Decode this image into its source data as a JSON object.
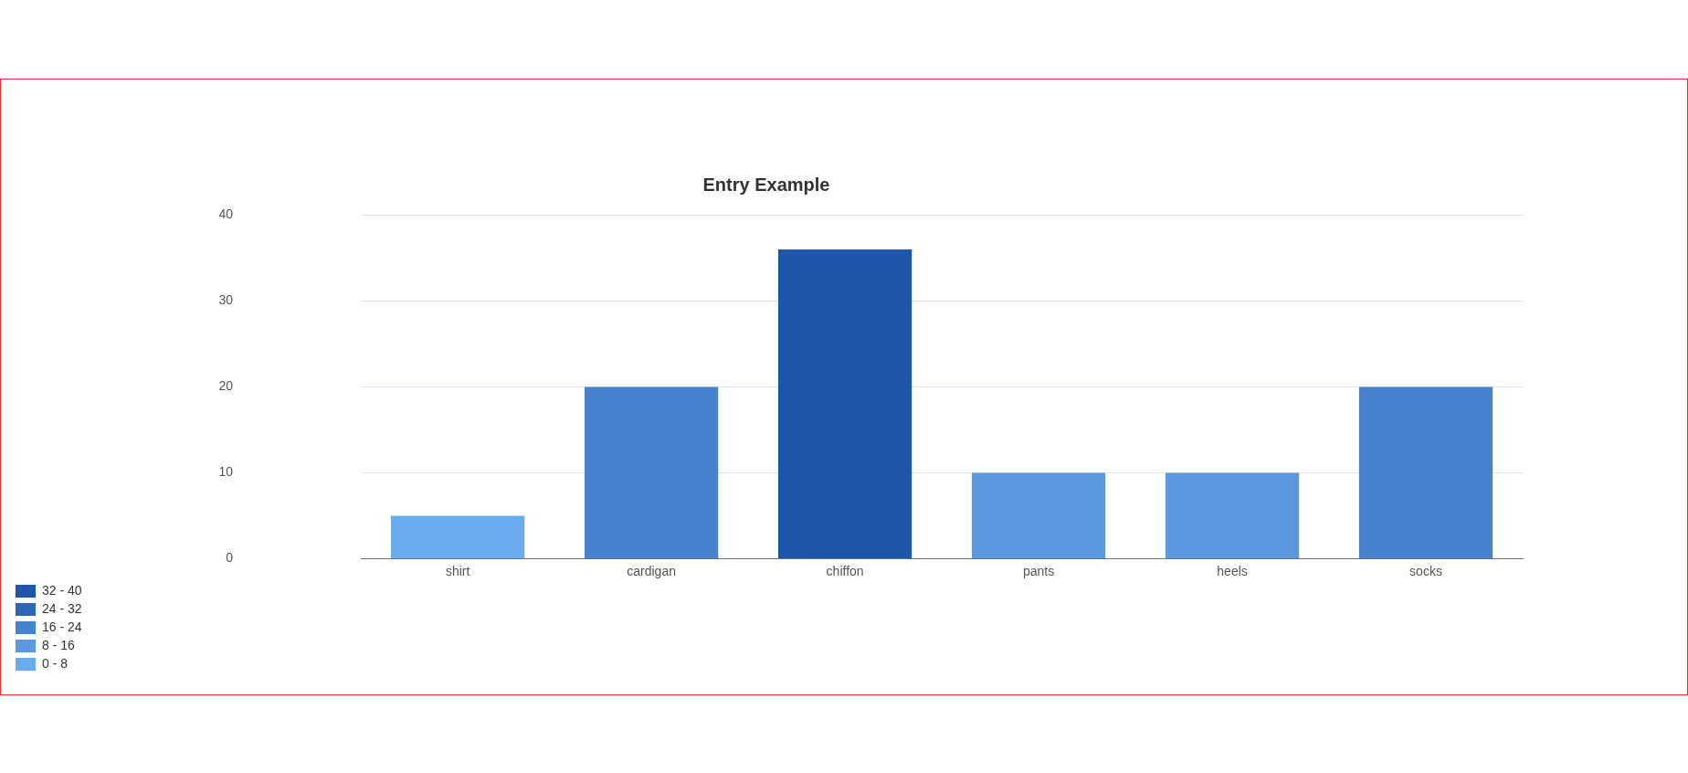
{
  "chart_data": {
    "type": "bar",
    "title": "Entry Example",
    "categories": [
      "shirt",
      "cardigan",
      "chiffon",
      "pants",
      "heels",
      "socks"
    ],
    "series": [
      {
        "name": "32 - 40",
        "color": "#1f56a8",
        "values": [
          null,
          null,
          36,
          null,
          null,
          null
        ]
      },
      {
        "name": "24 - 32",
        "color": "#2e67b6",
        "values": [
          null,
          null,
          null,
          null,
          null,
          null
        ]
      },
      {
        "name": "16 - 24",
        "color": "#4682cd",
        "values": [
          null,
          20,
          null,
          null,
          null,
          20
        ]
      },
      {
        "name": "8 - 16",
        "color": "#5b98dd",
        "values": [
          null,
          null,
          null,
          10,
          10,
          null
        ]
      },
      {
        "name": "0 - 8",
        "color": "#6aaced",
        "values": [
          5,
          null,
          null,
          null,
          null,
          null
        ]
      }
    ],
    "stacked": true,
    "ylim": [
      0,
      40
    ],
    "yticks": [
      0,
      10,
      20,
      30,
      40
    ],
    "grid": "y",
    "legend": "bottom left"
  }
}
